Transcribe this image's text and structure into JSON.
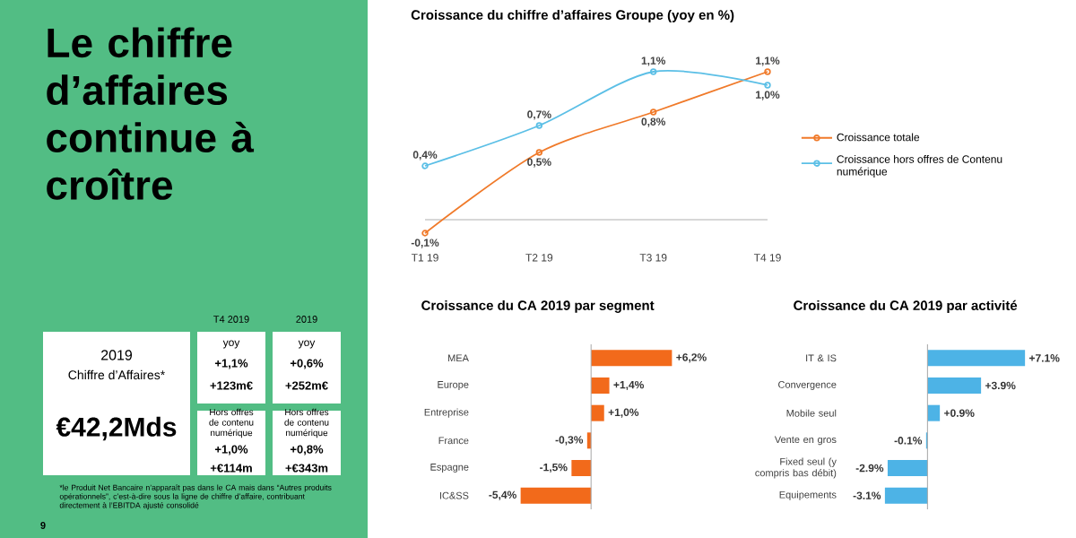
{
  "chart_data": [
    {
      "type": "other",
      "title": "Le chiffre d’affaires continue à croître",
      "annotations": [
        "T4 2019",
        "2019",
        "2019",
        "Chiffre d’Affaires*",
        "€42,2Mds",
        "yoy",
        "+1,1%",
        "+123m€",
        "Hors offres de contenu numérique",
        "+1,0%",
        "+€114m",
        "yoy",
        "+0,6%",
        "+252m€",
        "Hors offres de contenu numérique",
        "+0,8%",
        "+€343m",
        "*le Produit Net Bancaire n’apparaît pas dans le CA mais dans “Autres produits opérationnels”, c’est-à-dire sous la ligne de chiffre d’affaire, contribuant directement à l’EBITDA ajusté consolidé",
        "9"
      ]
    },
    {
      "type": "line",
      "title": "Croissance du chiffre d’affaires Groupe (yoy en %)",
      "categories": [
        "T1 19",
        "T2 19",
        "T3 19",
        "T4 19"
      ],
      "series": [
        {
          "name": "Croissance totale",
          "color": "#f07a2a",
          "values": [
            -0.1,
            0.5,
            0.8,
            1.1
          ],
          "value_labels": [
            "-0,1%",
            "0,5%",
            "0,8%",
            "1,1%"
          ]
        },
        {
          "name": "Croissance hors offres de Contenu numérique",
          "color": "#5bbfe6",
          "values": [
            0.4,
            0.7,
            1.1,
            1.0
          ],
          "value_labels": [
            "0,4%",
            "0,7%",
            "1,1%",
            "1,0%"
          ]
        }
      ],
      "marker": "circle",
      "legend": "right",
      "tick_labels": "x",
      "ref_lines": [
        {
          "axis": "y",
          "value": 0
        }
      ]
    },
    {
      "type": "bar",
      "orientation": "horizontal",
      "title": "Croissance du CA 2019 par segment",
      "categories": [
        "MEA",
        "Europe",
        "Entreprise",
        "France",
        "Espagne",
        "IC&SS"
      ],
      "values": [
        6.2,
        1.4,
        1.0,
        -0.3,
        -1.5,
        -5.4
      ],
      "color": "#f26a1b",
      "value_labels": [
        "+6,2%",
        "+1,4%",
        "+1,0%",
        "-0,3%",
        "-1,5%",
        "-5,4%"
      ],
      "tick_labels": "y"
    },
    {
      "type": "bar",
      "orientation": "horizontal",
      "title": "Croissance du CA 2019 par activité",
      "categories": [
        "IT & IS",
        "Convergence",
        "Mobile seul",
        "Vente en gros",
        "Fixed seul (y compris bas débit)",
        "Equipements"
      ],
      "values": [
        7.1,
        3.9,
        0.9,
        -0.1,
        -2.9,
        -3.1
      ],
      "color": "#4db3e6",
      "value_labels": [
        "+7.1%",
        "+3.9%",
        "+0.9%",
        "-0.1%",
        "-2.9%",
        "-3.1%"
      ],
      "tick_labels": "y"
    }
  ]
}
